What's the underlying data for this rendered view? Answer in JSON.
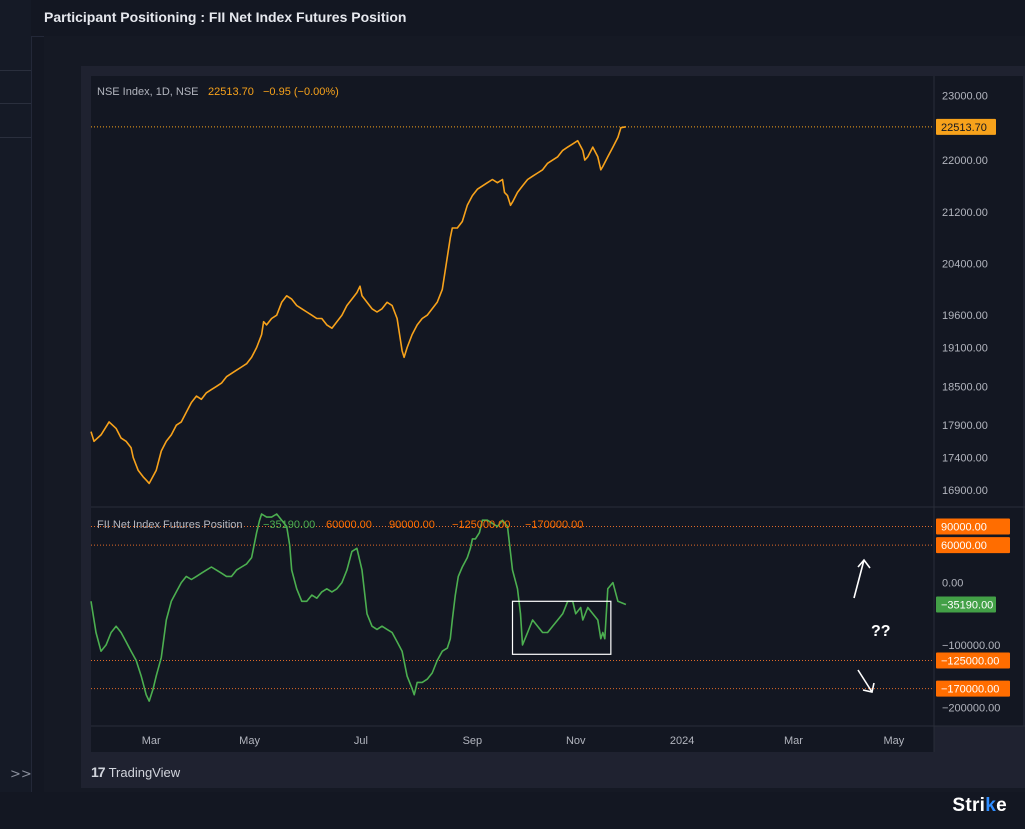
{
  "page": {
    "title": "Participant Positioning : FII Net Index Futures Position"
  },
  "sidebar": {
    "expand_label": ">>"
  },
  "watermark": {
    "tv_logo": "17",
    "tv_name": "TradingView",
    "brand_left": "Stri",
    "brand_accent": "k",
    "brand_right": "e"
  },
  "colors": {
    "bg": "#131722",
    "price": "#f7a21b",
    "position": "#4caf50",
    "label_orange": "#ff6d00",
    "label_green": "#43a047",
    "refline": "#e06a2a",
    "grid_text": "#b2b5be"
  },
  "chart_data": [
    {
      "type": "line",
      "legend": {
        "name": "NSE Index, 1D, NSE",
        "value": "22513.70",
        "change": "−0.95 (−0.00%)"
      },
      "y_ticks": [
        "23000.00",
        "22000.00",
        "21200.00",
        "20400.00",
        "19600.00",
        "19100.00",
        "18500.00",
        "17900.00",
        "17400.00",
        "16900.00"
      ],
      "y_tick_values": [
        23000,
        22000,
        21200,
        20400,
        19600,
        19100,
        18500,
        17900,
        17400,
        16900
      ],
      "ylim": [
        16650,
        23300
      ],
      "last_label": "22513.70",
      "series": [
        {
          "color": "#f7a21b",
          "points": [
            [
              0,
              17800
            ],
            [
              3,
              17650
            ],
            [
              10,
              17750
            ],
            [
              18,
              17950
            ],
            [
              25,
              17850
            ],
            [
              30,
              17700
            ],
            [
              35,
              17650
            ],
            [
              40,
              17550
            ],
            [
              42,
              17400
            ],
            [
              47,
              17200
            ],
            [
              52,
              17100
            ],
            [
              55,
              17050
            ],
            [
              58,
              17000
            ],
            [
              65,
              17200
            ],
            [
              70,
              17500
            ],
            [
              75,
              17650
            ],
            [
              80,
              17750
            ],
            [
              85,
              17900
            ],
            [
              90,
              17950
            ],
            [
              95,
              18100
            ],
            [
              100,
              18250
            ],
            [
              105,
              18350
            ],
            [
              110,
              18300
            ],
            [
              115,
              18400
            ],
            [
              120,
              18450
            ],
            [
              125,
              18500
            ],
            [
              130,
              18550
            ],
            [
              135,
              18650
            ],
            [
              140,
              18700
            ],
            [
              145,
              18750
            ],
            [
              150,
              18800
            ],
            [
              155,
              18850
            ],
            [
              160,
              18950
            ],
            [
              165,
              19100
            ],
            [
              170,
              19300
            ],
            [
              172,
              19500
            ],
            [
              175,
              19450
            ],
            [
              180,
              19550
            ],
            [
              185,
              19600
            ],
            [
              190,
              19800
            ],
            [
              195,
              19900
            ],
            [
              200,
              19850
            ],
            [
              205,
              19750
            ],
            [
              210,
              19700
            ],
            [
              215,
              19650
            ],
            [
              220,
              19600
            ],
            [
              225,
              19550
            ],
            [
              230,
              19550
            ],
            [
              235,
              19450
            ],
            [
              240,
              19400
            ],
            [
              245,
              19500
            ],
            [
              250,
              19600
            ],
            [
              255,
              19750
            ],
            [
              260,
              19850
            ],
            [
              265,
              19950
            ],
            [
              268,
              20050
            ],
            [
              270,
              19900
            ],
            [
              275,
              19800
            ],
            [
              280,
              19700
            ],
            [
              285,
              19650
            ],
            [
              290,
              19700
            ],
            [
              295,
              19800
            ],
            [
              300,
              19750
            ],
            [
              305,
              19550
            ],
            [
              307,
              19350
            ],
            [
              310,
              19050
            ],
            [
              312,
              18950
            ],
            [
              315,
              19100
            ],
            [
              320,
              19300
            ],
            [
              325,
              19450
            ],
            [
              330,
              19550
            ],
            [
              335,
              19600
            ],
            [
              340,
              19700
            ],
            [
              345,
              19800
            ],
            [
              350,
              20000
            ],
            [
              352,
              20200
            ],
            [
              355,
              20500
            ],
            [
              358,
              20800
            ],
            [
              360,
              20950
            ],
            [
              365,
              20950
            ],
            [
              370,
              21050
            ],
            [
              375,
              21300
            ],
            [
              380,
              21450
            ],
            [
              385,
              21550
            ],
            [
              390,
              21600
            ],
            [
              395,
              21650
            ],
            [
              400,
              21700
            ],
            [
              405,
              21650
            ],
            [
              410,
              21700
            ],
            [
              412,
              21500
            ],
            [
              415,
              21450
            ],
            [
              418,
              21300
            ],
            [
              420,
              21350
            ],
            [
              425,
              21500
            ],
            [
              430,
              21600
            ],
            [
              435,
              21700
            ],
            [
              440,
              21750
            ],
            [
              445,
              21800
            ],
            [
              450,
              21850
            ],
            [
              455,
              21950
            ],
            [
              460,
              22000
            ],
            [
              465,
              22050
            ],
            [
              470,
              22150
            ],
            [
              475,
              22200
            ],
            [
              480,
              22250
            ],
            [
              485,
              22300
            ],
            [
              490,
              22150
            ],
            [
              492,
              22000
            ],
            [
              495,
              22050
            ],
            [
              500,
              22200
            ],
            [
              505,
              22050
            ],
            [
              508,
              21850
            ],
            [
              510,
              21900
            ],
            [
              515,
              22050
            ],
            [
              520,
              22200
            ],
            [
              525,
              22350
            ],
            [
              528,
              22500
            ],
            [
              533,
              22514
            ]
          ]
        }
      ]
    },
    {
      "type": "line",
      "legend": {
        "name": "FII Net Index Futures Position",
        "values": [
          "−35190.00",
          "60000.00",
          "90000.00",
          "−125000.00",
          "−170000.00"
        ]
      },
      "y_ticks": [
        "0.00",
        "−100000.00",
        "−200000.00"
      ],
      "y_tick_values": [
        0,
        -100000,
        -200000
      ],
      "ylim": [
        -230000,
        110000
      ],
      "ref_lines": [
        {
          "value": 90000,
          "label": "90000.00"
        },
        {
          "value": 60000,
          "label": "60000.00"
        },
        {
          "value": -125000,
          "label": "−125000.00"
        },
        {
          "value": -170000,
          "label": "−170000.00"
        }
      ],
      "last_label": "−35190.00",
      "annotation": {
        "text": "??",
        "box_x": [
          420,
          518
        ],
        "box_y": [
          -30000,
          -115000
        ]
      },
      "series": [
        {
          "color": "#4caf50",
          "points": [
            [
              0,
              -30000
            ],
            [
              5,
              -80000
            ],
            [
              10,
              -110000
            ],
            [
              15,
              -100000
            ],
            [
              20,
              -80000
            ],
            [
              25,
              -70000
            ],
            [
              30,
              -80000
            ],
            [
              35,
              -95000
            ],
            [
              40,
              -110000
            ],
            [
              45,
              -125000
            ],
            [
              50,
              -150000
            ],
            [
              55,
              -180000
            ],
            [
              58,
              -190000
            ],
            [
              62,
              -170000
            ],
            [
              65,
              -150000
            ],
            [
              70,
              -120000
            ],
            [
              75,
              -60000
            ],
            [
              80,
              -30000
            ],
            [
              85,
              -15000
            ],
            [
              90,
              0
            ],
            [
              95,
              10000
            ],
            [
              100,
              5000
            ],
            [
              105,
              10000
            ],
            [
              110,
              15000
            ],
            [
              115,
              20000
            ],
            [
              120,
              25000
            ],
            [
              125,
              20000
            ],
            [
              130,
              15000
            ],
            [
              135,
              10000
            ],
            [
              140,
              10000
            ],
            [
              145,
              20000
            ],
            [
              150,
              25000
            ],
            [
              155,
              30000
            ],
            [
              160,
              40000
            ],
            [
              165,
              80000
            ],
            [
              168,
              100000
            ],
            [
              170,
              110000
            ],
            [
              175,
              105000
            ],
            [
              180,
              105000
            ],
            [
              185,
              110000
            ],
            [
              190,
              100000
            ],
            [
              195,
              90000
            ],
            [
              198,
              60000
            ],
            [
              200,
              20000
            ],
            [
              205,
              -10000
            ],
            [
              210,
              -30000
            ],
            [
              215,
              -30000
            ],
            [
              220,
              -20000
            ],
            [
              225,
              -25000
            ],
            [
              230,
              -15000
            ],
            [
              235,
              -10000
            ],
            [
              240,
              -15000
            ],
            [
              245,
              -10000
            ],
            [
              250,
              0
            ],
            [
              255,
              20000
            ],
            [
              260,
              50000
            ],
            [
              265,
              55000
            ],
            [
              270,
              20000
            ],
            [
              275,
              -50000
            ],
            [
              280,
              -70000
            ],
            [
              285,
              -75000
            ],
            [
              290,
              -70000
            ],
            [
              295,
              -75000
            ],
            [
              300,
              -80000
            ],
            [
              305,
              -95000
            ],
            [
              310,
              -110000
            ],
            [
              315,
              -150000
            ],
            [
              320,
              -170000
            ],
            [
              322,
              -180000
            ],
            [
              325,
              -160000
            ],
            [
              330,
              -160000
            ],
            [
              335,
              -155000
            ],
            [
              340,
              -145000
            ],
            [
              345,
              -125000
            ],
            [
              350,
              -110000
            ],
            [
              355,
              -105000
            ],
            [
              358,
              -90000
            ],
            [
              360,
              -60000
            ],
            [
              363,
              -20000
            ],
            [
              366,
              10000
            ],
            [
              370,
              25000
            ],
            [
              375,
              40000
            ],
            [
              378,
              55000
            ],
            [
              380,
              70000
            ],
            [
              383,
              70000
            ],
            [
              387,
              80000
            ],
            [
              390,
              100000
            ],
            [
              395,
              100000
            ],
            [
              400,
              95000
            ],
            [
              405,
              90000
            ],
            [
              410,
              100000
            ],
            [
              415,
              90000
            ],
            [
              420,
              20000
            ],
            [
              425,
              -10000
            ],
            [
              428,
              -50000
            ],
            [
              430,
              -100000
            ],
            [
              435,
              -80000
            ],
            [
              440,
              -60000
            ],
            [
              445,
              -70000
            ],
            [
              450,
              -80000
            ],
            [
              455,
              -80000
            ],
            [
              460,
              -70000
            ],
            [
              465,
              -60000
            ],
            [
              470,
              -50000
            ],
            [
              475,
              -30000
            ],
            [
              480,
              -30000
            ],
            [
              483,
              -50000
            ],
            [
              488,
              -40000
            ],
            [
              490,
              -60000
            ],
            [
              495,
              -40000
            ],
            [
              500,
              -50000
            ],
            [
              505,
              -60000
            ],
            [
              508,
              -90000
            ],
            [
              510,
              -80000
            ],
            [
              512,
              -90000
            ],
            [
              515,
              -10000
            ],
            [
              520,
              0
            ],
            [
              525,
              -30000
            ],
            [
              533,
              -35190
            ]
          ]
        }
      ]
    }
  ],
  "x_axis": {
    "labels": [
      "Mar",
      "May",
      "Jul",
      "Sep",
      "Nov",
      "2024",
      "Mar",
      "May"
    ],
    "label_pos": [
      60,
      158,
      269,
      380,
      483,
      589,
      700,
      800
    ],
    "domain": [
      0,
      840
    ]
  }
}
